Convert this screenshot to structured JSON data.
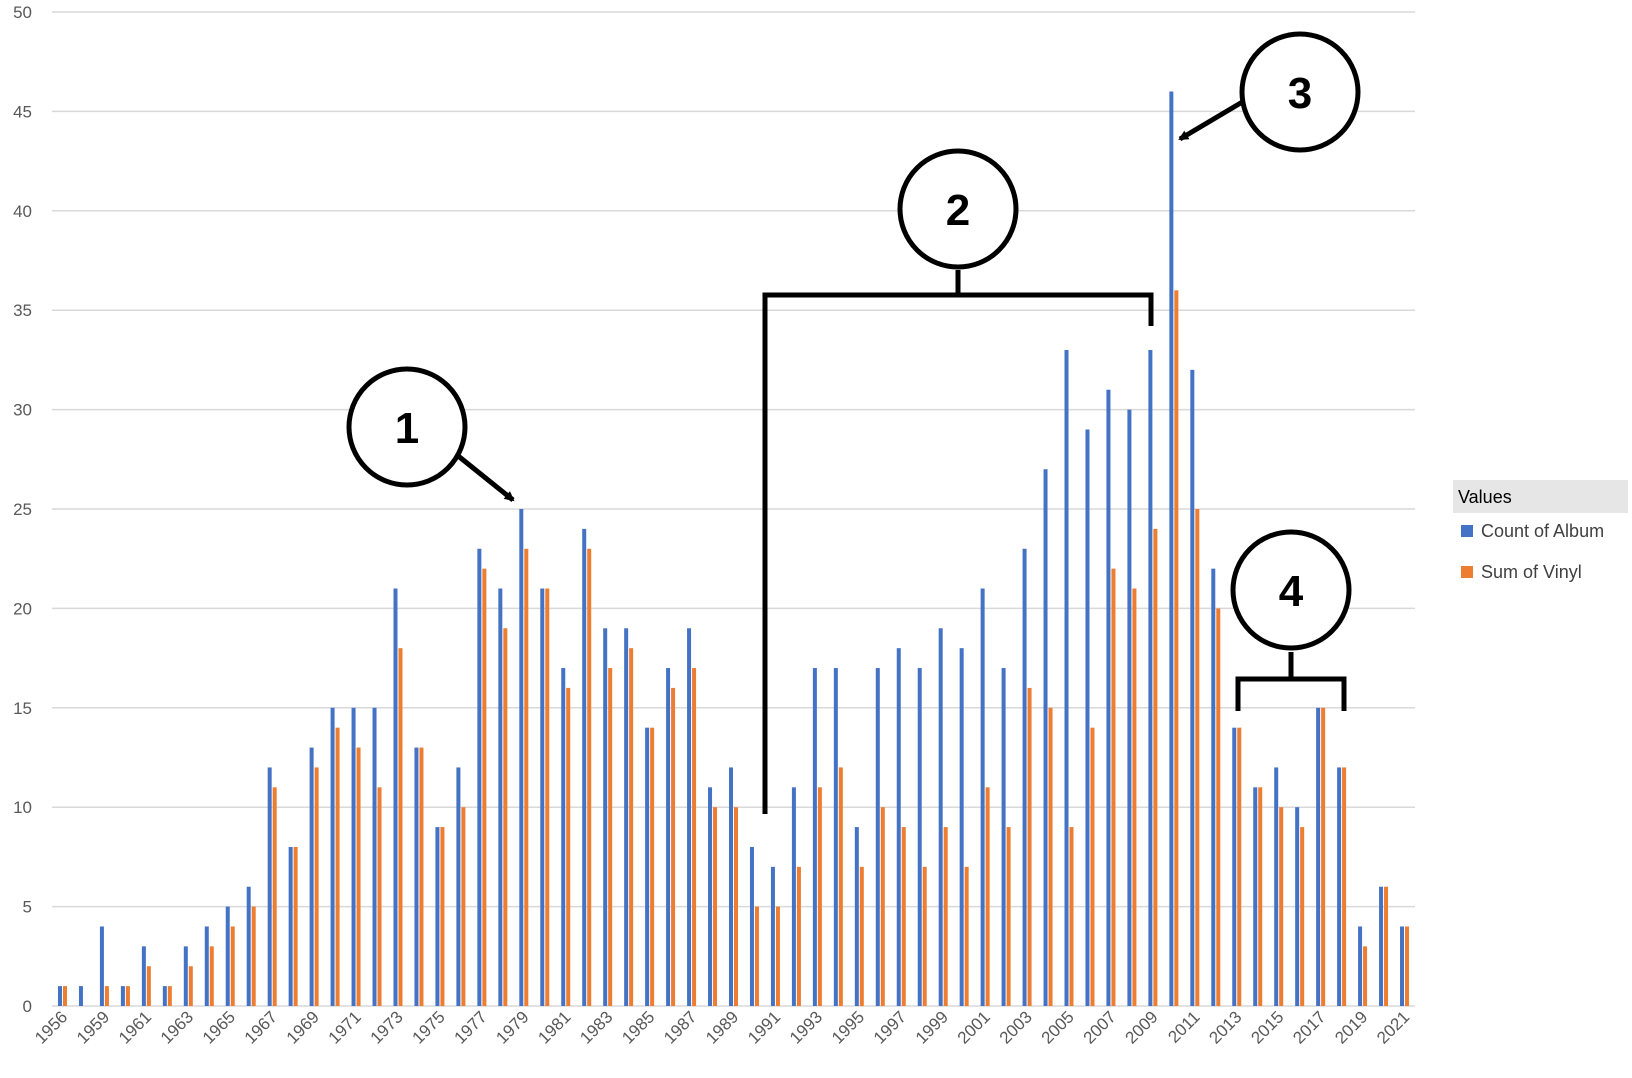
{
  "chart_data": {
    "type": "bar",
    "title": "",
    "xlabel": "",
    "ylabel": "",
    "ylim": [
      0,
      50
    ],
    "yticks": [
      0,
      5,
      10,
      15,
      20,
      25,
      30,
      35,
      40,
      45,
      50
    ],
    "grid": "horizontal",
    "legend_position": "right",
    "legend_title": "Values",
    "categories": [
      "1956",
      "1958",
      "1959",
      "1960",
      "1961",
      "1962",
      "1963",
      "1964",
      "1965",
      "1966",
      "1967",
      "1968",
      "1969",
      "1970",
      "1971",
      "1972",
      "1973",
      "1974",
      "1975",
      "1976",
      "1977",
      "1978",
      "1979",
      "1980",
      "1981",
      "1982",
      "1983",
      "1984",
      "1985",
      "1986",
      "1987",
      "1988",
      "1989",
      "1990",
      "1991",
      "1992",
      "1993",
      "1994",
      "1995",
      "1996",
      "1997",
      "1998",
      "1999",
      "2000",
      "2001",
      "2002",
      "2003",
      "2004",
      "2005",
      "2006",
      "2007",
      "2008",
      "2009",
      "2010",
      "2011",
      "2012",
      "2013",
      "2014",
      "2015",
      "2016",
      "2017",
      "2018",
      "2019",
      "2020",
      "2021"
    ],
    "tick_labels": [
      "1956",
      "1959",
      "1961",
      "1963",
      "1965",
      "1967",
      "1969",
      "1971",
      "1973",
      "1975",
      "1977",
      "1979",
      "1981",
      "1983",
      "1985",
      "1987",
      "1989",
      "1991",
      "1993",
      "1995",
      "1997",
      "1999",
      "2001",
      "2003",
      "2005",
      "2007",
      "2009",
      "2011",
      "2013",
      "2015",
      "2017",
      "2019",
      "2021"
    ],
    "series": [
      {
        "name": "Count of Album",
        "color": "#4472C4",
        "values": [
          1,
          1,
          4,
          1,
          3,
          1,
          3,
          4,
          5,
          6,
          12,
          8,
          13,
          15,
          15,
          15,
          21,
          13,
          9,
          12,
          23,
          21,
          25,
          21,
          17,
          24,
          19,
          19,
          14,
          17,
          19,
          11,
          12,
          8,
          7,
          11,
          17,
          17,
          9,
          17,
          18,
          17,
          19,
          18,
          21,
          17,
          23,
          27,
          33,
          29,
          31,
          30,
          33,
          46,
          32,
          22,
          14,
          11,
          12,
          10,
          15,
          12,
          4,
          6,
          4
        ]
      },
      {
        "name": "Sum of Vinyl",
        "color": "#ED7D31",
        "values": [
          1,
          0,
          1,
          1,
          2,
          1,
          2,
          3,
          4,
          5,
          11,
          8,
          12,
          14,
          13,
          11,
          18,
          13,
          9,
          10,
          22,
          19,
          23,
          21,
          16,
          23,
          17,
          18,
          14,
          16,
          17,
          10,
          10,
          5,
          5,
          7,
          11,
          12,
          7,
          10,
          9,
          7,
          9,
          7,
          11,
          9,
          16,
          15,
          9,
          14,
          22,
          21,
          24,
          36,
          25,
          20,
          14,
          11,
          10,
          9,
          15,
          12,
          3,
          6,
          4
        ]
      }
    ],
    "annotations": [
      {
        "label": "1",
        "target": "1979"
      },
      {
        "label": "2",
        "target": "1991-2009"
      },
      {
        "label": "3",
        "target": "2010"
      },
      {
        "label": "4",
        "target": "2013-2018"
      }
    ]
  }
}
